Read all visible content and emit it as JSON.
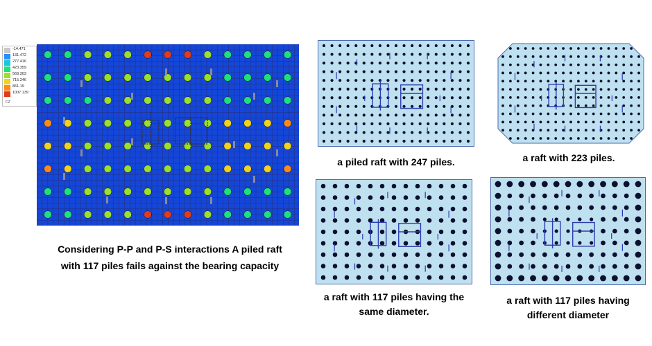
{
  "legend": {
    "title": "FZ",
    "levels": [
      {
        "value": "-14.471",
        "color": "#c8c8c8"
      },
      {
        "value": "131.472",
        "color": "#2b8cff"
      },
      {
        "value": "277.416",
        "color": "#17c6e0"
      },
      {
        "value": "423.359",
        "color": "#1fe07a"
      },
      {
        "value": "569.303",
        "color": "#9be02a"
      },
      {
        "value": "715.246",
        "color": "#f2d21a"
      },
      {
        "value": "861.19",
        "color": "#ff8a1a"
      },
      {
        "value": "1007.139",
        "color": "#e23b1a"
      }
    ]
  },
  "colors": {
    "fea_background": "#1446d8",
    "fea_grid": "#2a2a6a",
    "panel_fill": "#bfe0ef",
    "panel_border": "#4a6ab0",
    "pile_dot": "#0b1030",
    "accent_lines": "#2b3cb0",
    "hole_fill": "#8a8a9a"
  },
  "captions": {
    "fea_line1": "Considering P-P and P-S interactions A piled raft",
    "fea_line2": "with 117 piles fails against the bearing capacity",
    "panel_247": "a piled raft with 247 piles.",
    "panel_223": "a raft with 223 piles.",
    "panel_117_same_line1": "a raft with 117 piles having the",
    "panel_117_same_line2": "same diameter.",
    "panel_117_diff_line1": "a raft with 117 piles having",
    "panel_117_diff_line2": "different diameter"
  },
  "pile_counts": {
    "fea": 117,
    "panel_a": 247,
    "panel_b": 223,
    "panel_c": 117,
    "panel_d": 117
  }
}
